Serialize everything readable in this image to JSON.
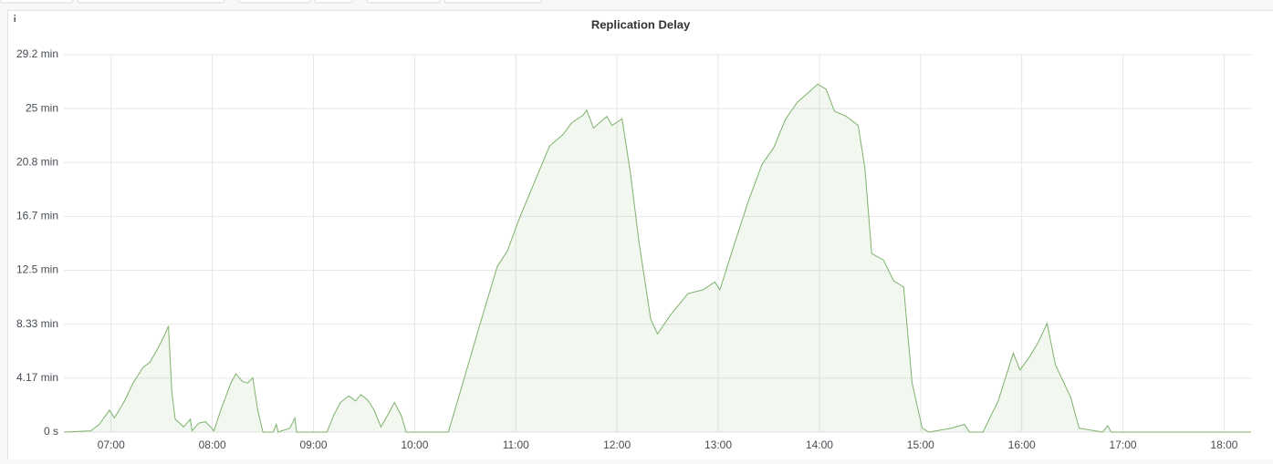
{
  "chart_data": {
    "type": "area",
    "title": "Replication Delay",
    "x": [
      "06:32",
      "06:48",
      "06:53",
      "06:59",
      "07:02",
      "07:08",
      "07:13",
      "07:19",
      "07:23",
      "07:27",
      "07:31",
      "07:34",
      "07:36",
      "07:38",
      "07:43",
      "07:47",
      "07:48",
      "07:52",
      "07:56",
      "07:59",
      "08:01",
      "08:05",
      "08:11",
      "08:14",
      "08:18",
      "08:21",
      "08:24",
      "08:27",
      "08:30",
      "08:36",
      "08:38",
      "08:39",
      "08:46",
      "08:49",
      "08:50",
      "09:08",
      "09:12",
      "09:16",
      "09:21",
      "09:25",
      "09:28",
      "09:32",
      "09:36",
      "09:40",
      "09:44",
      "09:48",
      "09:52",
      "09:55",
      "10:20",
      "10:27",
      "10:38",
      "10:49",
      "10:55",
      "11:02",
      "11:11",
      "11:20",
      "11:28",
      "11:33",
      "11:40",
      "11:42",
      "11:46",
      "11:54",
      "11:57",
      "12:03",
      "12:08",
      "12:13",
      "12:20",
      "12:24",
      "12:32",
      "12:42",
      "12:51",
      "12:58",
      "13:01",
      "13:10",
      "13:18",
      "13:26",
      "13:33",
      "13:40",
      "13:47",
      "13:54",
      "13:59",
      "14:04",
      "14:09",
      "14:16",
      "14:23",
      "14:27",
      "14:31",
      "14:38",
      "14:44",
      "14:50",
      "14:55",
      "15:01",
      "15:05",
      "15:18",
      "15:26",
      "15:29",
      "15:37",
      "15:46",
      "15:55",
      "15:59",
      "16:05",
      "16:10",
      "16:15",
      "16:20",
      "16:25",
      "16:29",
      "16:34",
      "16:48",
      "16:51",
      "16:53",
      "18:16"
    ],
    "values": [
      0,
      0.1,
      0.6,
      1.7,
      1.1,
      2.4,
      3.8,
      5.0,
      5.4,
      6.3,
      7.3,
      8.2,
      3.1,
      1.0,
      0.4,
      1.0,
      0.1,
      0.7,
      0.8,
      0.4,
      0.1,
      1.7,
      3.8,
      4.5,
      3.9,
      3.8,
      4.2,
      1.7,
      0,
      0,
      0.6,
      0,
      0.3,
      1.1,
      0,
      0,
      1.3,
      2.3,
      2.8,
      2.4,
      2.9,
      2.5,
      1.7,
      0.4,
      1.3,
      2.3,
      1.3,
      0,
      0,
      3.1,
      8.0,
      12.8,
      14.0,
      16.5,
      19.3,
      22.1,
      23.0,
      23.9,
      24.5,
      24.9,
      23.5,
      24.4,
      23.7,
      24.2,
      20.0,
      14.7,
      8.7,
      7.6,
      9.1,
      10.7,
      11.0,
      11.6,
      11.0,
      14.7,
      17.9,
      20.7,
      22.0,
      24.2,
      25.5,
      26.3,
      26.9,
      26.5,
      24.8,
      24.4,
      23.7,
      20.4,
      13.8,
      13.3,
      11.7,
      11.2,
      3.8,
      0.3,
      0,
      0.3,
      0.6,
      0,
      0,
      2.4,
      6.1,
      4.8,
      5.9,
      7.0,
      8.4,
      5.2,
      3.8,
      2.7,
      0.3,
      0,
      0.5,
      0,
      0
    ],
    "color": "#7eb26d",
    "xlim": [
      "06:32",
      "18:16"
    ],
    "xticks": [
      "07:00",
      "08:00",
      "09:00",
      "10:00",
      "11:00",
      "12:00",
      "13:00",
      "14:00",
      "15:00",
      "16:00",
      "17:00",
      "18:00"
    ],
    "ylim": [
      0,
      29.1667
    ],
    "yticks": [
      {
        "value": 0,
        "label": "0 s"
      },
      {
        "value": 4.1667,
        "label": "4.17 min"
      },
      {
        "value": 8.3333,
        "label": "8.33 min"
      },
      {
        "value": 12.5,
        "label": "12.5 min"
      },
      {
        "value": 16.6667,
        "label": "16.7 min"
      },
      {
        "value": 20.8333,
        "label": "20.8 min"
      },
      {
        "value": 25,
        "label": "25 min"
      },
      {
        "value": 29.1667,
        "label": "29.2 min"
      }
    ],
    "grid": true
  }
}
